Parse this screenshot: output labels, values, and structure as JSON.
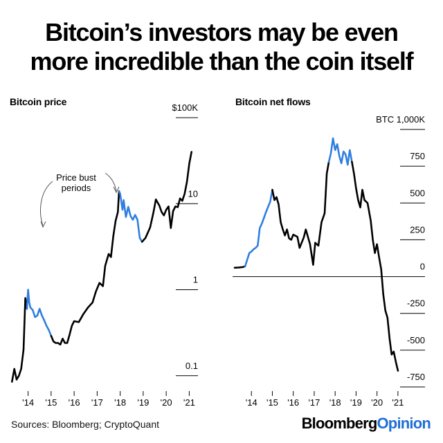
{
  "headline": {
    "line1": "Bitcoin’s investors may be even",
    "line2": "more incredible than the coin itself"
  },
  "colors": {
    "normal": "#000000",
    "bust": "#2f7ee0"
  },
  "chart_data": [
    {
      "type": "line",
      "title": "Bitcoin price",
      "y_scale": "log",
      "ylim": [
        0.07,
        100
      ],
      "y_ticks": [
        {
          "value": 100,
          "label": "$100K"
        },
        {
          "value": 10,
          "label": "10"
        },
        {
          "value": 1,
          "label": "1"
        },
        {
          "value": 0.1,
          "label": "0.1"
        }
      ],
      "x_ticks": [
        "'14",
        "'15",
        "'16",
        "'17",
        "'18",
        "'19",
        "'20",
        "'21"
      ],
      "xlim": [
        2013.2,
        2021.8
      ],
      "annotation": "Price bust periods",
      "annotation_lines": [
        "Price bust",
        "periods"
      ],
      "series": [
        {
          "segment": "normal",
          "points": [
            [
              2013.3,
              0.085
            ],
            [
              2013.4,
              0.12
            ],
            [
              2013.5,
              0.09
            ],
            [
              2013.6,
              0.1
            ],
            [
              2013.7,
              0.12
            ],
            [
              2013.8,
              0.2
            ],
            [
              2013.88,
              0.8
            ],
            [
              2013.95,
              0.6
            ]
          ]
        },
        {
          "segment": "bust",
          "points": [
            [
              2013.95,
              0.6
            ],
            [
              2014.0,
              1.0
            ],
            [
              2014.05,
              0.7
            ],
            [
              2014.1,
              0.62
            ],
            [
              2014.2,
              0.58
            ],
            [
              2014.3,
              0.48
            ],
            [
              2014.4,
              0.5
            ],
            [
              2014.5,
              0.6
            ],
            [
              2014.6,
              0.5
            ],
            [
              2014.7,
              0.44
            ],
            [
              2014.8,
              0.38
            ],
            [
              2014.9,
              0.34
            ],
            [
              2015.0,
              0.29
            ]
          ]
        },
        {
          "segment": "normal",
          "points": [
            [
              2015.0,
              0.29
            ],
            [
              2015.1,
              0.25
            ],
            [
              2015.2,
              0.24
            ],
            [
              2015.3,
              0.24
            ],
            [
              2015.4,
              0.23
            ],
            [
              2015.5,
              0.27
            ],
            [
              2015.6,
              0.24
            ],
            [
              2015.7,
              0.24
            ],
            [
              2015.8,
              0.3
            ],
            [
              2015.9,
              0.38
            ],
            [
              2016.0,
              0.43
            ],
            [
              2016.2,
              0.42
            ],
            [
              2016.4,
              0.52
            ],
            [
              2016.6,
              0.62
            ],
            [
              2016.8,
              0.71
            ],
            [
              2016.95,
              0.96
            ],
            [
              2017.1,
              1.2
            ],
            [
              2017.25,
              1.1
            ],
            [
              2017.35,
              1.9
            ],
            [
              2017.5,
              2.6
            ],
            [
              2017.6,
              2.4
            ],
            [
              2017.7,
              4.2
            ],
            [
              2017.8,
              6.3
            ],
            [
              2017.9,
              8.0
            ],
            [
              2017.95,
              14.0
            ]
          ]
        },
        {
          "segment": "bust",
          "points": [
            [
              2017.95,
              14.0
            ],
            [
              2018.0,
              13.0
            ],
            [
              2018.1,
              8.5
            ],
            [
              2018.15,
              11.0
            ],
            [
              2018.25,
              7.0
            ],
            [
              2018.35,
              9.2
            ],
            [
              2018.45,
              7.2
            ],
            [
              2018.55,
              6.5
            ],
            [
              2018.65,
              7.4
            ],
            [
              2018.75,
              6.5
            ],
            [
              2018.85,
              4.0
            ],
            [
              2018.95,
              3.6
            ]
          ]
        },
        {
          "segment": "normal",
          "points": [
            [
              2018.95,
              3.6
            ],
            [
              2019.1,
              4.0
            ],
            [
              2019.3,
              5.3
            ],
            [
              2019.45,
              8.0
            ],
            [
              2019.55,
              11.2
            ],
            [
              2019.7,
              9.5
            ],
            [
              2019.8,
              8.0
            ],
            [
              2019.9,
              7.3
            ],
            [
              2020.0,
              8.5
            ],
            [
              2020.1,
              9.3
            ],
            [
              2020.2,
              5.2
            ],
            [
              2020.3,
              8.2
            ],
            [
              2020.4,
              9.3
            ],
            [
              2020.5,
              9.1
            ],
            [
              2020.6,
              11.5
            ],
            [
              2020.7,
              10.8
            ],
            [
              2020.8,
              13.0
            ],
            [
              2020.9,
              18.0
            ],
            [
              2021.0,
              29.0
            ],
            [
              2021.1,
              40.0
            ]
          ]
        }
      ]
    },
    {
      "type": "line",
      "title": "Bitcoin net flows",
      "unit": "BTC",
      "ylim": [
        -750,
        1000
      ],
      "y_ticks": [
        {
          "value": 1000,
          "label": "BTC 1,000K"
        },
        {
          "value": 750,
          "label": "750"
        },
        {
          "value": 500,
          "label": "500"
        },
        {
          "value": 250,
          "label": "250"
        },
        {
          "value": 0,
          "label": "0"
        },
        {
          "value": -250,
          "label": "-250"
        },
        {
          "value": -500,
          "label": "-500"
        },
        {
          "value": -750,
          "label": "-750"
        }
      ],
      "x_ticks": [
        "'14",
        "'15",
        "'16",
        "'17",
        "'18",
        "'19",
        "'20",
        "'21"
      ],
      "xlim": [
        2013.1,
        2021.5
      ],
      "series": [
        {
          "segment": "normal",
          "points": [
            [
              2013.2,
              60
            ],
            [
              2013.4,
              62
            ],
            [
              2013.6,
              65
            ],
            [
              2013.7,
              70
            ]
          ]
        },
        {
          "segment": "bust",
          "points": [
            [
              2013.7,
              70
            ],
            [
              2013.9,
              160
            ],
            [
              2014.0,
              170
            ],
            [
              2014.1,
              185
            ],
            [
              2014.2,
              195
            ],
            [
              2014.3,
              210
            ],
            [
              2014.4,
              330
            ],
            [
              2014.5,
              360
            ],
            [
              2014.6,
              400
            ],
            [
              2014.7,
              440
            ],
            [
              2014.8,
              475
            ],
            [
              2014.9,
              510
            ],
            [
              2015.0,
              590
            ]
          ]
        },
        {
          "segment": "normal",
          "points": [
            [
              2015.0,
              590
            ],
            [
              2015.1,
              520
            ],
            [
              2015.2,
              540
            ],
            [
              2015.3,
              490
            ],
            [
              2015.4,
              370
            ],
            [
              2015.5,
              320
            ],
            [
              2015.6,
              280
            ],
            [
              2015.7,
              320
            ],
            [
              2015.8,
              260
            ],
            [
              2015.9,
              250
            ],
            [
              2016.0,
              285
            ],
            [
              2016.2,
              270
            ],
            [
              2016.3,
              195
            ],
            [
              2016.5,
              265
            ],
            [
              2016.6,
              320
            ],
            [
              2016.8,
              220
            ],
            [
              2016.95,
              80
            ],
            [
              2017.05,
              230
            ],
            [
              2017.2,
              210
            ],
            [
              2017.35,
              370
            ],
            [
              2017.5,
              430
            ],
            [
              2017.6,
              700
            ],
            [
              2017.7,
              780
            ]
          ]
        },
        {
          "segment": "bust",
          "points": [
            [
              2017.7,
              780
            ],
            [
              2017.8,
              840
            ],
            [
              2017.9,
              940
            ],
            [
              2018.0,
              860
            ],
            [
              2018.1,
              900
            ],
            [
              2018.2,
              820
            ],
            [
              2018.3,
              770
            ],
            [
              2018.4,
              850
            ],
            [
              2018.5,
              830
            ],
            [
              2018.6,
              760
            ],
            [
              2018.7,
              860
            ],
            [
              2018.8,
              780
            ]
          ]
        },
        {
          "segment": "normal",
          "points": [
            [
              2018.8,
              780
            ],
            [
              2018.9,
              700
            ],
            [
              2019.0,
              600
            ],
            [
              2019.1,
              520
            ],
            [
              2019.2,
              470
            ],
            [
              2019.3,
              590
            ],
            [
              2019.4,
              520
            ],
            [
              2019.55,
              500
            ],
            [
              2019.7,
              380
            ],
            [
              2019.8,
              250
            ],
            [
              2019.9,
              160
            ],
            [
              2020.0,
              220
            ],
            [
              2020.1,
              130
            ],
            [
              2020.2,
              50
            ],
            [
              2020.3,
              -120
            ],
            [
              2020.4,
              -230
            ],
            [
              2020.5,
              -280
            ],
            [
              2020.6,
              -420
            ],
            [
              2020.7,
              -530
            ],
            [
              2020.8,
              -510
            ],
            [
              2020.9,
              -580
            ],
            [
              2021.0,
              -640
            ]
          ]
        }
      ]
    }
  ],
  "footer": {
    "source": "Sources: Bloomberg; CryptoQuant",
    "brand_part1": "Bloomberg",
    "brand_part2": "Opinion"
  }
}
